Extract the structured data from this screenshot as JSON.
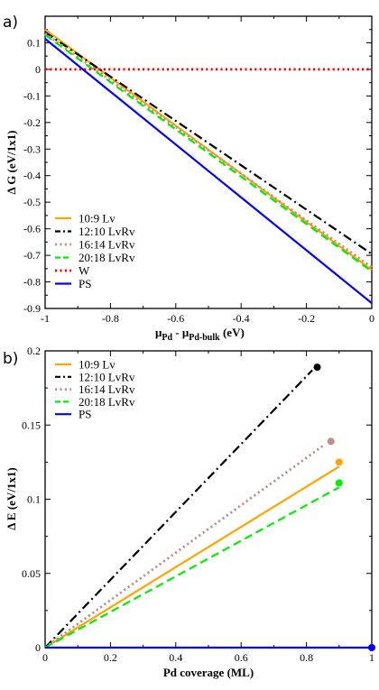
{
  "chart_data": [
    {
      "type": "line",
      "panel": "a)",
      "xlabel_main": "μ",
      "xlabel_sub1": "Pd",
      "xlabel_mid": " - μ",
      "xlabel_sub2": "Pd-bulk",
      "xlabel_unit": " (eV)",
      "ylabel": "Δ G (eV/1x1)",
      "xlim": [
        -1,
        0
      ],
      "ylim": [
        -0.9,
        0.2
      ],
      "xticks": [
        -1,
        -0.8,
        -0.6,
        -0.4,
        -0.2,
        0
      ],
      "xtick_labels": [
        "-1",
        "-0.8",
        "-0.6",
        "-0.4",
        "-0.2",
        "0"
      ],
      "yticks": [
        -0.9,
        -0.8,
        -0.7,
        -0.6,
        -0.5,
        -0.4,
        -0.3,
        -0.2,
        -0.1,
        0,
        0.1,
        0.2
      ],
      "ytick_labels": [
        "-0.9",
        "-0.8",
        "-0.7",
        "-0.6",
        "-0.5",
        "-0.4",
        "-0.3",
        "-0.2",
        "-0.1",
        "0",
        "0.1",
        ""
      ],
      "legend_position": "bottom-left",
      "series": [
        {
          "name": "10:9 Lv",
          "color": "#FFA500",
          "style": "solid",
          "x": [
            -1,
            0
          ],
          "y": [
            0.15,
            -0.755
          ]
        },
        {
          "name": "12:10 LvRv",
          "color": "#000000",
          "style": "dashdot",
          "x": [
            -1,
            0
          ],
          "y": [
            0.14,
            -0.695
          ]
        },
        {
          "name": "16:14 LvRv",
          "color": "#BC8F8F",
          "style": "dotted",
          "x": [
            -1,
            0
          ],
          "y": [
            0.135,
            -0.745
          ]
        },
        {
          "name": "20:18 LvRv",
          "color": "#00EE00",
          "style": "dashed",
          "x": [
            -1,
            0
          ],
          "y": [
            0.13,
            -0.76
          ]
        },
        {
          "name": "W",
          "color": "#FF0000",
          "style": "dotted",
          "x": [
            -1,
            0
          ],
          "y": [
            0,
            0
          ]
        },
        {
          "name": "PS",
          "color": "#0000FF",
          "style": "solid",
          "x": [
            -1,
            0
          ],
          "y": [
            0.115,
            -0.88
          ]
        }
      ]
    },
    {
      "type": "line",
      "panel": "b)",
      "xlabel": "Pd coverage (ML)",
      "ylabel": "Δ E (eV/1x1)",
      "xlim": [
        0,
        1
      ],
      "ylim": [
        0,
        0.2
      ],
      "xticks": [
        0,
        0.2,
        0.4,
        0.6,
        0.8,
        1
      ],
      "xtick_labels": [
        "0",
        "0.2",
        "0.4",
        "0.6",
        "0.8",
        "1"
      ],
      "yticks": [
        0,
        0.05,
        0.1,
        0.15,
        0.2
      ],
      "ytick_labels": [
        "0",
        "0.05",
        "0.1",
        "0.15",
        "0.2"
      ],
      "legend_position": "top-left",
      "series": [
        {
          "name": "10:9 Lv",
          "color": "#FFA500",
          "style": "solid",
          "x": [
            0,
            0.9
          ],
          "y": [
            0,
            0.122
          ],
          "end_marker": {
            "x": 0.9,
            "y": 0.125
          }
        },
        {
          "name": "12:10 LvRv",
          "color": "#000000",
          "style": "dashdot",
          "x": [
            0,
            0.818
          ],
          "y": [
            0,
            0.187
          ],
          "end_marker": {
            "x": 0.833,
            "y": 0.189
          }
        },
        {
          "name": "16:14 LvRv",
          "color": "#BC8F8F",
          "style": "dotted",
          "x": [
            0,
            0.857
          ],
          "y": [
            0,
            0.137
          ],
          "end_marker": {
            "x": 0.875,
            "y": 0.139
          }
        },
        {
          "name": "20:18 LvRv",
          "color": "#00EE00",
          "style": "dashed",
          "x": [
            0,
            0.9
          ],
          "y": [
            0,
            0.108
          ],
          "end_marker": {
            "x": 0.9,
            "y": 0.111
          }
        },
        {
          "name": "PS",
          "color": "#0000FF",
          "style": "solid",
          "x": [
            0,
            1
          ],
          "y": [
            0,
            0
          ],
          "end_marker": {
            "x": 1,
            "y": 0
          }
        }
      ]
    }
  ]
}
